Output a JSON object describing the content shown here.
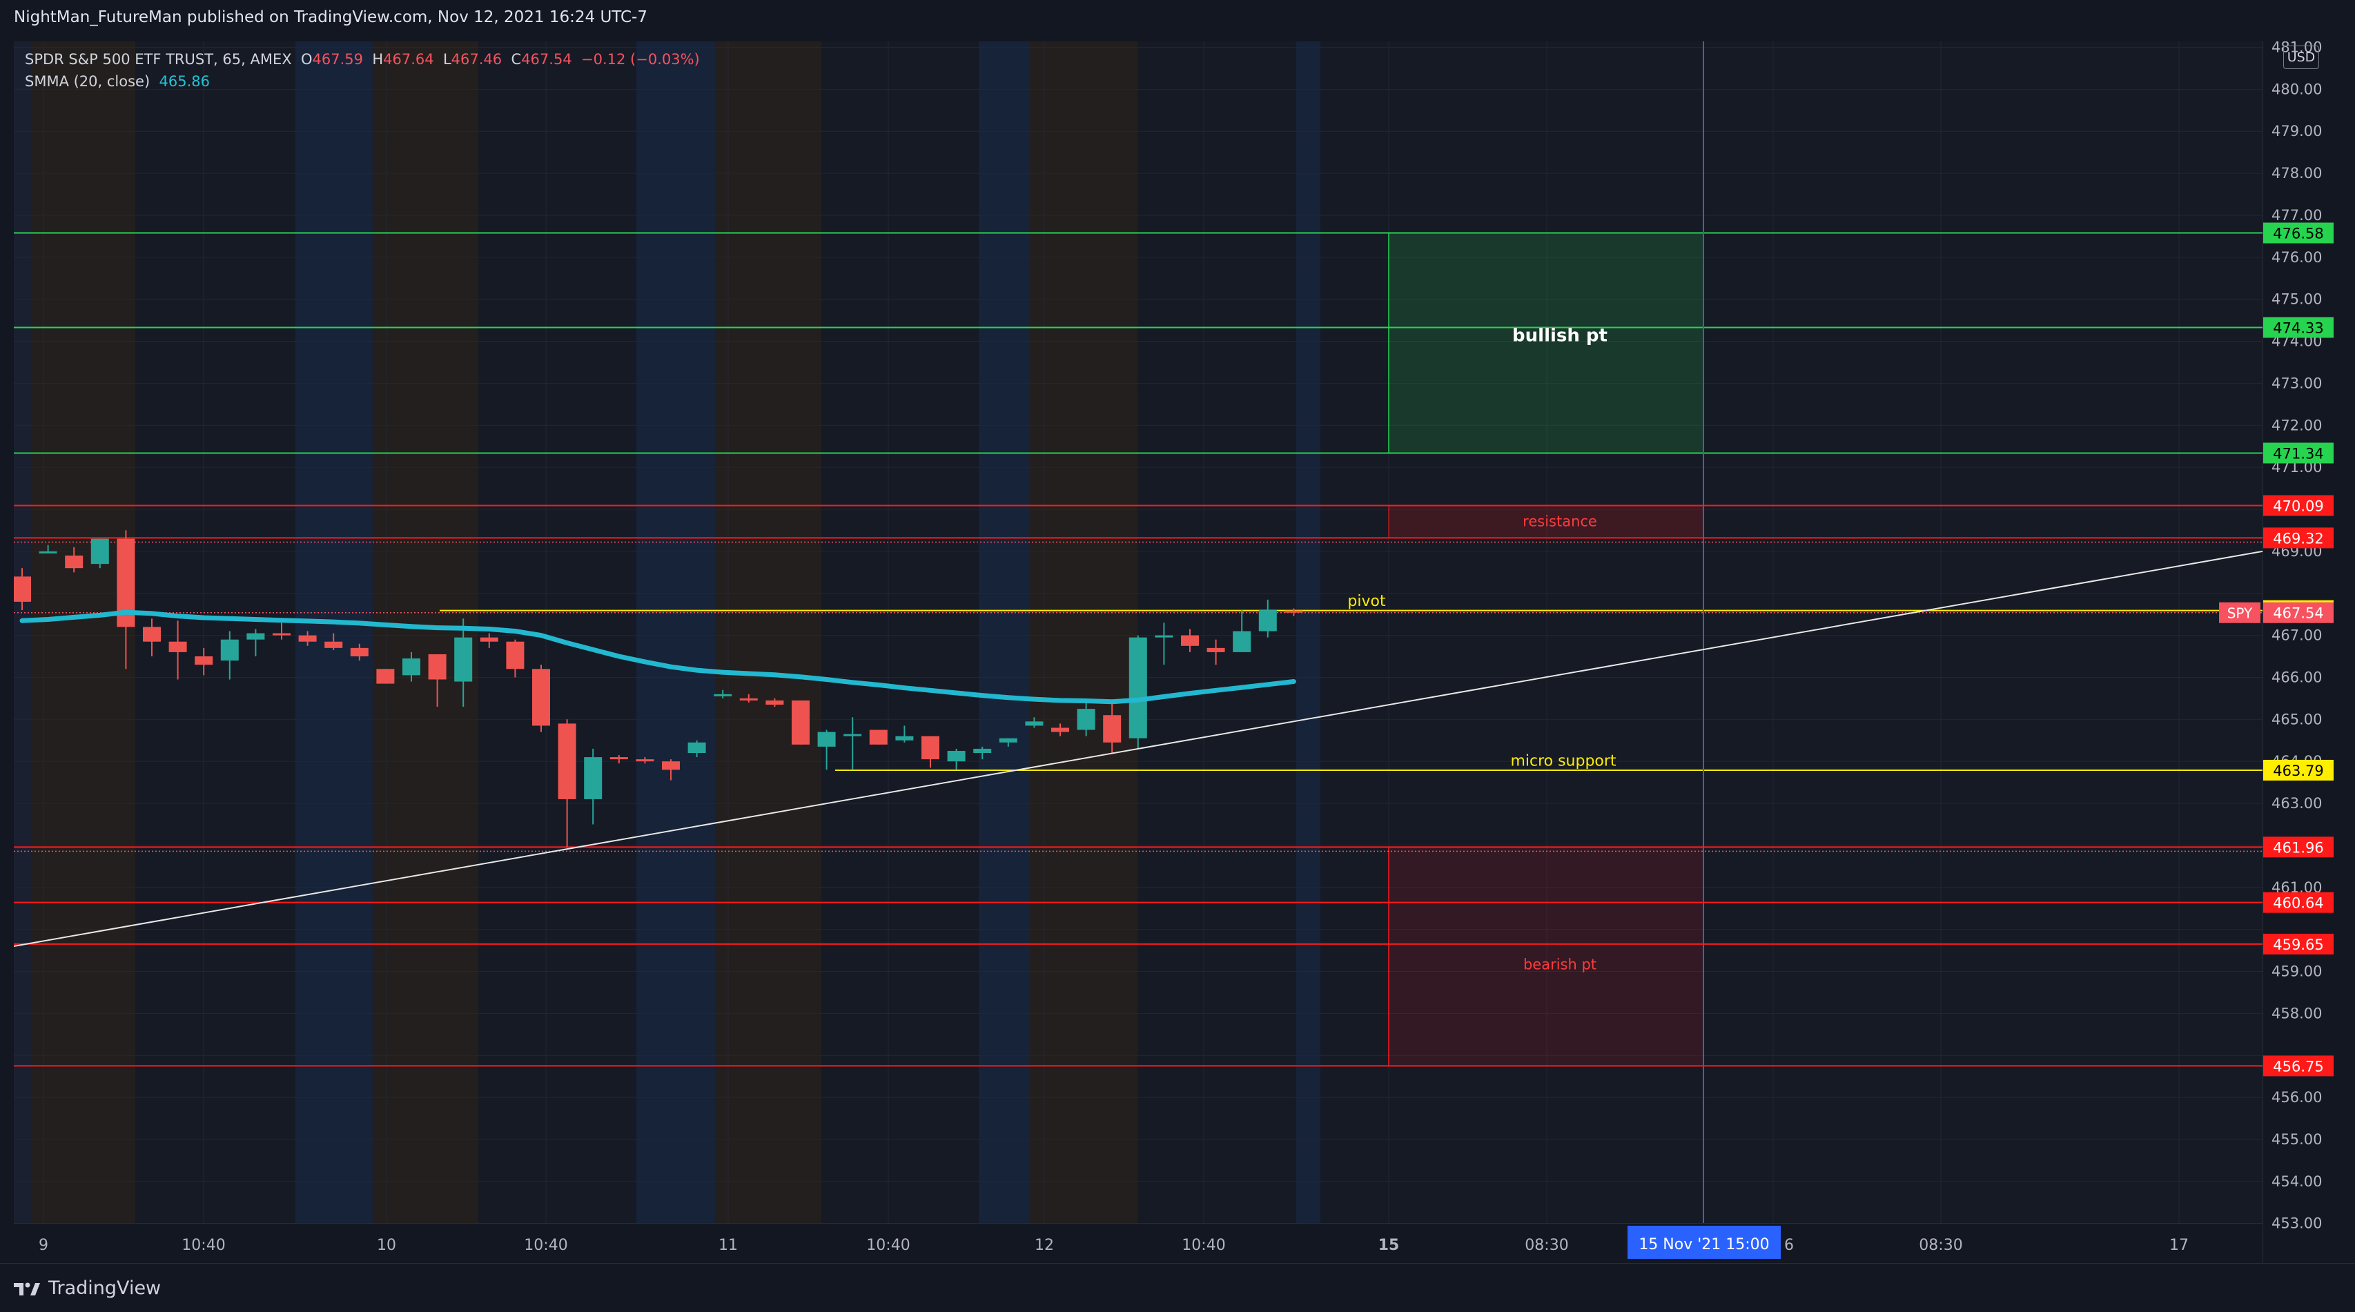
{
  "header": {
    "published": "NightMan_FutureMan published on TradingView.com, Nov 12, 2021 16:24 UTC-7"
  },
  "legend": {
    "symbol": "SPDR S&P 500 ETF TRUST, 65, AMEX",
    "o_key": "O",
    "o_val": "467.59",
    "h_key": "H",
    "h_val": "467.64",
    "l_key": "L",
    "l_val": "467.46",
    "c_key": "C",
    "c_val": "467.54",
    "change": "−0.12 (−0.03%)",
    "smma_label": "SMMA (20, close)",
    "smma_val": "465.86"
  },
  "price_axis": {
    "currency": "USD",
    "symbol_tag": "SPY"
  },
  "footer": {
    "brand": "TradingView"
  },
  "colors": {
    "up": "#26a69a",
    "down": "#ef5350",
    "smma": "#22b8cf",
    "green_level": "#26d44f",
    "red_level": "#ff1a1a",
    "yellow_level": "#ffee00",
    "crosshair": "#2962ff"
  },
  "chart_data": {
    "type": "candlestick",
    "title": "SPDR S&P 500 ETF TRUST, 65, AMEX",
    "ylim": [
      452.6,
      481.6
    ],
    "y_ticks": [
      453,
      454,
      455,
      456,
      458,
      459,
      461,
      463,
      464,
      465,
      466,
      467,
      469,
      470,
      471,
      472,
      473,
      474,
      475,
      476,
      477,
      478,
      479,
      480,
      481
    ],
    "x_ticks": [
      "9",
      "10:40",
      "10",
      "10:40",
      "11",
      "10:40",
      "12",
      "10:40",
      "15",
      "08:30",
      "6",
      "08:30",
      "17"
    ],
    "crosshair_label": "15 Nov '21   15:00",
    "candles": [
      {
        "o": 468.4,
        "h": 468.6,
        "l": 467.6,
        "c": 467.8
      },
      {
        "o": 469.0,
        "h": 469.15,
        "l": 468.95,
        "c": 469.0
      },
      {
        "o": 468.9,
        "h": 469.1,
        "l": 468.5,
        "c": 468.6
      },
      {
        "o": 468.7,
        "h": 469.3,
        "l": 468.6,
        "c": 469.3
      },
      {
        "o": 469.3,
        "h": 469.5,
        "l": 466.2,
        "c": 467.2
      },
      {
        "o": 467.2,
        "h": 467.4,
        "l": 466.5,
        "c": 466.85
      },
      {
        "o": 466.85,
        "h": 467.35,
        "l": 465.95,
        "c": 466.6
      },
      {
        "o": 466.5,
        "h": 466.7,
        "l": 466.05,
        "c": 466.3
      },
      {
        "o": 466.4,
        "h": 467.1,
        "l": 465.95,
        "c": 466.9
      },
      {
        "o": 466.9,
        "h": 467.15,
        "l": 466.5,
        "c": 467.05
      },
      {
        "o": 467.05,
        "h": 467.3,
        "l": 466.9,
        "c": 467.0
      },
      {
        "o": 467.0,
        "h": 467.1,
        "l": 466.75,
        "c": 466.85
      },
      {
        "o": 466.85,
        "h": 467.05,
        "l": 466.65,
        "c": 466.7
      },
      {
        "o": 466.7,
        "h": 466.8,
        "l": 466.4,
        "c": 466.5
      },
      {
        "o": 466.2,
        "h": 466.2,
        "l": 465.85,
        "c": 465.85
      },
      {
        "o": 466.05,
        "h": 466.6,
        "l": 465.9,
        "c": 466.45
      },
      {
        "o": 466.55,
        "h": 466.55,
        "l": 465.3,
        "c": 465.95
      },
      {
        "o": 465.9,
        "h": 467.4,
        "l": 465.3,
        "c": 466.95
      },
      {
        "o": 466.95,
        "h": 467.05,
        "l": 466.7,
        "c": 466.85
      },
      {
        "o": 466.85,
        "h": 466.9,
        "l": 466.0,
        "c": 466.2
      },
      {
        "o": 466.2,
        "h": 466.3,
        "l": 464.7,
        "c": 464.85
      },
      {
        "o": 464.9,
        "h": 465.0,
        "l": 461.95,
        "c": 463.1
      },
      {
        "o": 463.1,
        "h": 464.3,
        "l": 462.5,
        "c": 464.1
      },
      {
        "o": 464.1,
        "h": 464.15,
        "l": 463.95,
        "c": 464.05
      },
      {
        "o": 464.05,
        "h": 464.1,
        "l": 463.95,
        "c": 464.0
      },
      {
        "o": 464.0,
        "h": 464.05,
        "l": 463.55,
        "c": 463.8
      },
      {
        "o": 464.2,
        "h": 464.5,
        "l": 464.1,
        "c": 464.45
      },
      {
        "o": 465.55,
        "h": 465.7,
        "l": 465.5,
        "c": 465.6
      },
      {
        "o": 465.5,
        "h": 465.6,
        "l": 465.4,
        "c": 465.45
      },
      {
        "o": 465.45,
        "h": 465.5,
        "l": 465.3,
        "c": 465.35
      },
      {
        "o": 465.45,
        "h": 465.45,
        "l": 464.4,
        "c": 464.4
      },
      {
        "o": 464.35,
        "h": 464.75,
        "l": 463.8,
        "c": 464.7
      },
      {
        "o": 464.6,
        "h": 465.05,
        "l": 463.8,
        "c": 464.65
      },
      {
        "o": 464.75,
        "h": 464.75,
        "l": 464.4,
        "c": 464.4
      },
      {
        "o": 464.5,
        "h": 464.85,
        "l": 464.45,
        "c": 464.6
      },
      {
        "o": 464.6,
        "h": 464.6,
        "l": 463.85,
        "c": 464.05
      },
      {
        "o": 464.0,
        "h": 464.3,
        "l": 463.8,
        "c": 464.25
      },
      {
        "o": 464.2,
        "h": 464.35,
        "l": 464.05,
        "c": 464.3
      },
      {
        "o": 464.45,
        "h": 464.55,
        "l": 464.35,
        "c": 464.55
      },
      {
        "o": 464.85,
        "h": 465.05,
        "l": 464.8,
        "c": 464.95
      },
      {
        "o": 464.8,
        "h": 464.9,
        "l": 464.6,
        "c": 464.7
      },
      {
        "o": 464.75,
        "h": 465.4,
        "l": 464.6,
        "c": 465.25
      },
      {
        "o": 465.1,
        "h": 465.4,
        "l": 464.2,
        "c": 464.45
      },
      {
        "o": 464.55,
        "h": 467.0,
        "l": 464.3,
        "c": 466.95
      },
      {
        "o": 466.95,
        "h": 467.3,
        "l": 466.3,
        "c": 467.0
      },
      {
        "o": 467.0,
        "h": 467.15,
        "l": 466.6,
        "c": 466.75
      },
      {
        "o": 466.7,
        "h": 466.9,
        "l": 466.3,
        "c": 466.6
      },
      {
        "o": 466.6,
        "h": 467.6,
        "l": 466.6,
        "c": 467.1
      },
      {
        "o": 467.1,
        "h": 467.85,
        "l": 466.95,
        "c": 467.6
      },
      {
        "o": 467.59,
        "h": 467.64,
        "l": 467.46,
        "c": 467.54
      }
    ],
    "smma": [
      467.35,
      467.38,
      467.43,
      467.48,
      467.55,
      467.52,
      467.46,
      467.42,
      467.4,
      467.38,
      467.36,
      467.34,
      467.32,
      467.29,
      467.25,
      467.21,
      467.18,
      467.17,
      467.15,
      467.1,
      467.0,
      466.82,
      466.66,
      466.5,
      466.37,
      466.25,
      466.17,
      466.12,
      466.09,
      466.06,
      466.01,
      465.95,
      465.88,
      465.82,
      465.75,
      465.69,
      465.63,
      465.57,
      465.52,
      465.48,
      465.45,
      465.44,
      465.42,
      465.46,
      465.54,
      465.62,
      465.69,
      465.76,
      465.83,
      465.9
    ],
    "levels": [
      {
        "price": 476.58,
        "label": "476.58",
        "color": "#26d44f"
      },
      {
        "price": 474.33,
        "label": "474.33",
        "color": "#26d44f"
      },
      {
        "price": 471.34,
        "label": "471.34",
        "color": "#26d44f"
      },
      {
        "price": 470.09,
        "label": "470.09",
        "color": "#ff1a1a"
      },
      {
        "price": 469.32,
        "label": "469.32",
        "color": "#ff1a1a"
      },
      {
        "price": 467.59,
        "label": "467.59",
        "color": "#ffee00"
      },
      {
        "price": 467.54,
        "label": "467.54",
        "color": "#f7525f"
      },
      {
        "price": 463.79,
        "label": "463.79",
        "color": "#ffee00"
      },
      {
        "price": 461.96,
        "label": "461.96",
        "color": "#ff1a1a"
      },
      {
        "price": 460.64,
        "label": "460.64",
        "color": "#ff1a1a"
      },
      {
        "price": 459.65,
        "label": "459.65",
        "color": "#ff1a1a"
      },
      {
        "price": 456.75,
        "label": "456.75",
        "color": "#ff1a1a"
      }
    ],
    "annotations": [
      {
        "text": "bullish pt",
        "color": "#ffffff"
      },
      {
        "text": "resistance",
        "color": "#ff3b3b"
      },
      {
        "text": "pivot",
        "color": "#ffee00"
      },
      {
        "text": "micro support",
        "color": "#ffee00"
      },
      {
        "text": "bearish pt",
        "color": "#ff3b3b"
      }
    ],
    "trendline": {
      "from_price": 459.6,
      "to_price": 469.0
    }
  }
}
